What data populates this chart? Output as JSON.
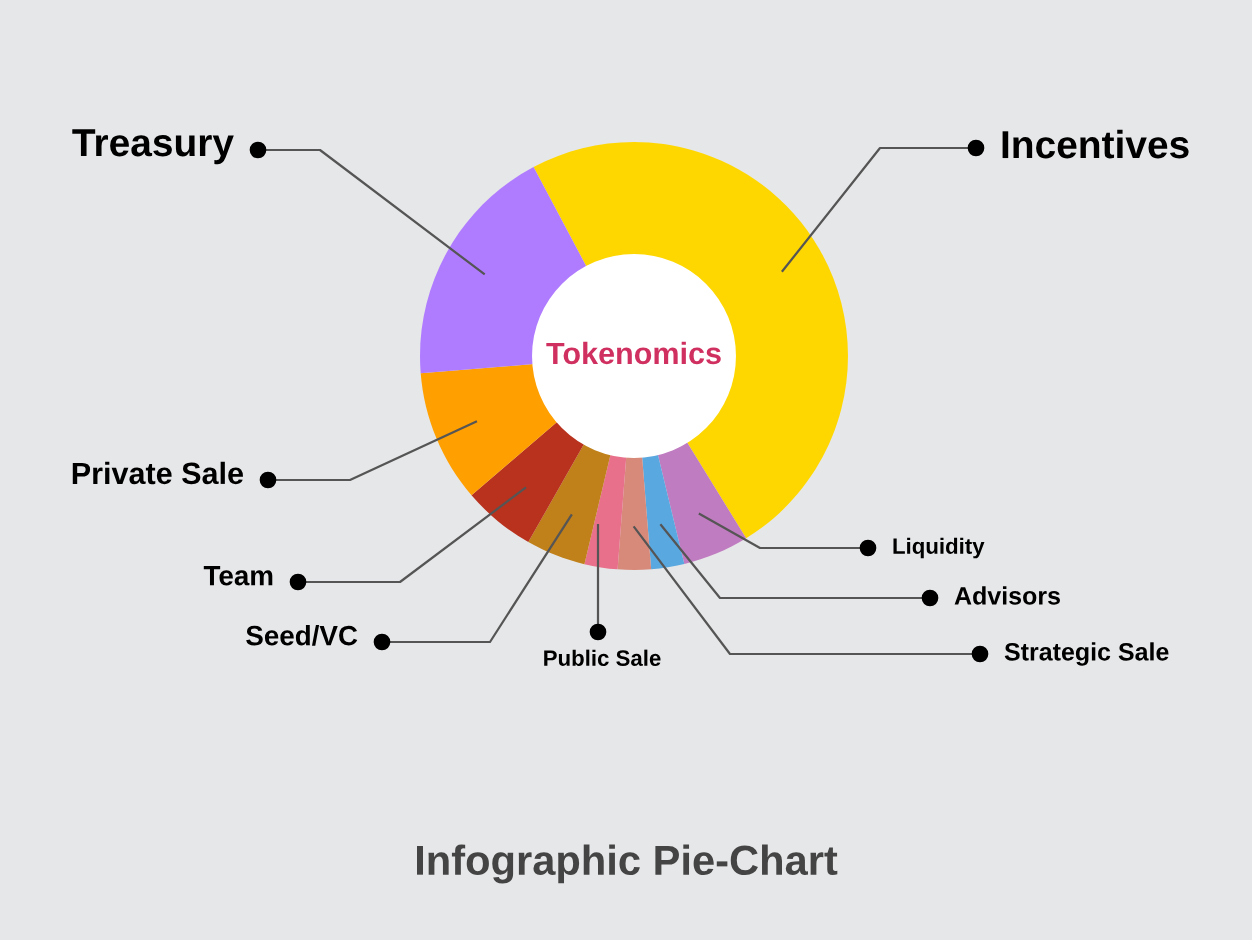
{
  "chart_data": {
    "type": "donut",
    "title": "Tokenomics",
    "categories": [
      "Incentives",
      "Liquidity",
      "Advisors",
      "Strategic Sale",
      "Public Sale",
      "Seed/VC",
      "Team",
      "Private Sale",
      "Treasury"
    ],
    "values": [
      49,
      5,
      2.5,
      2.5,
      2.5,
      4.5,
      5.5,
      10,
      18.5
    ],
    "colors": [
      "#ffd700",
      "#c07cc0",
      "#5aa8e0",
      "#d88a7a",
      "#e8708a",
      "#c0801a",
      "#b8321e",
      "#ff9f00",
      "#b07cff"
    ],
    "annotations": [
      "Infographic Pie-Chart"
    ]
  }
}
